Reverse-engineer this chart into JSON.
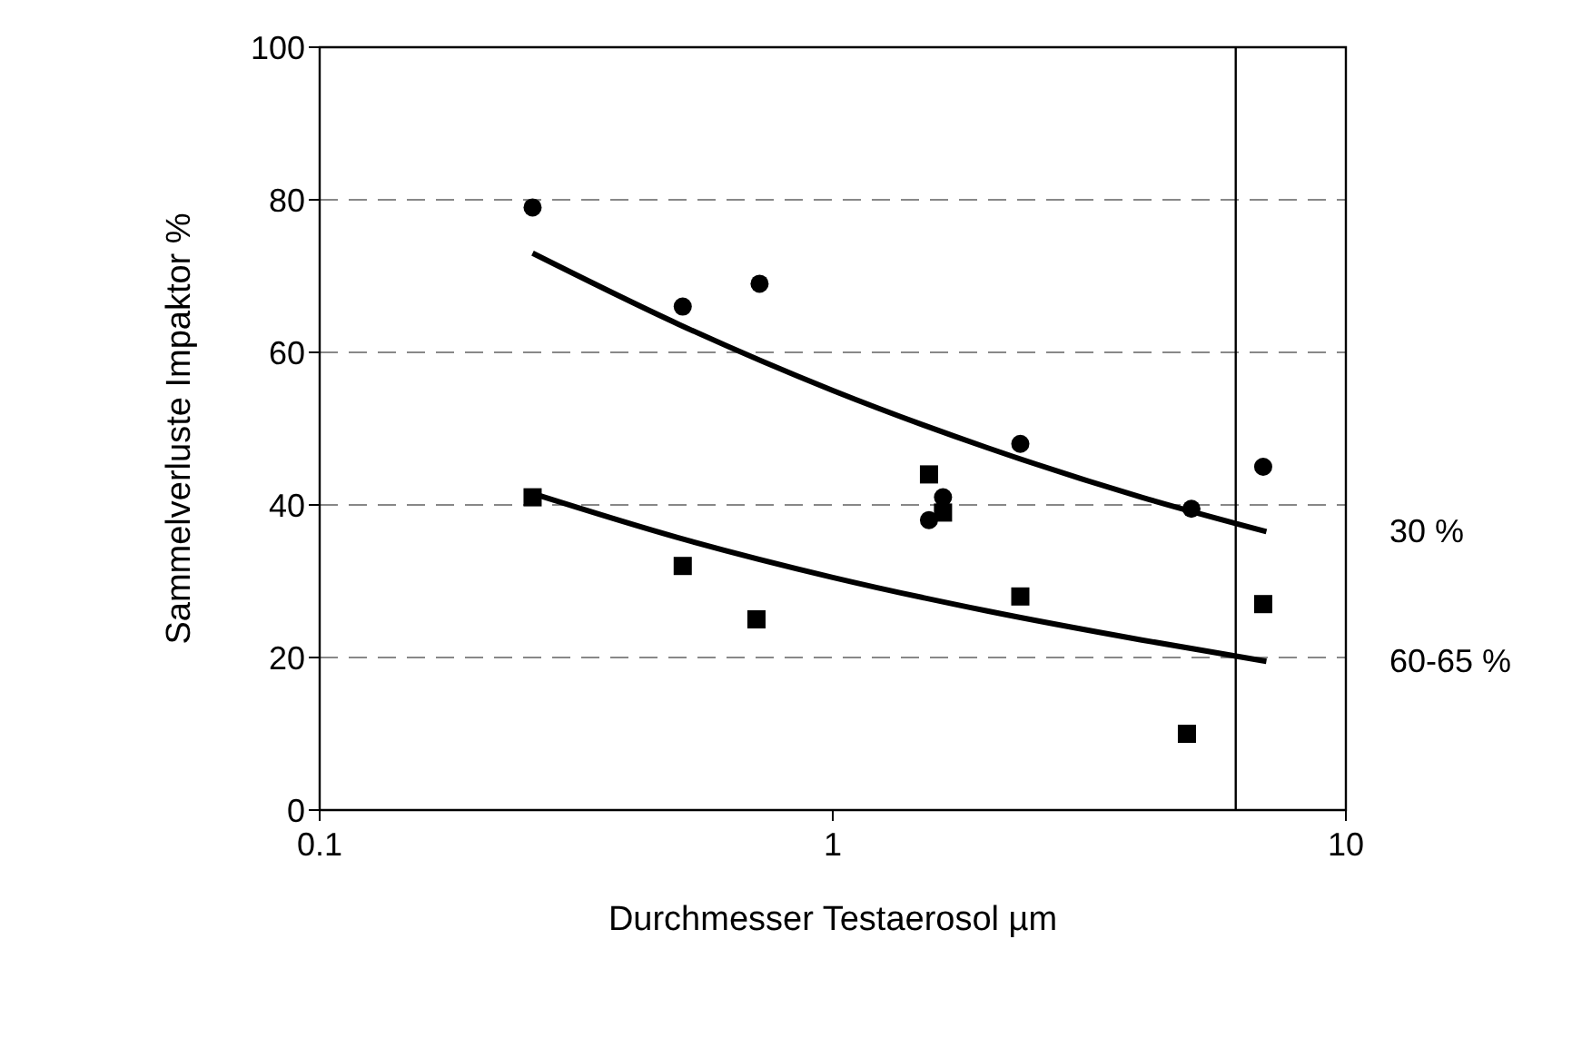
{
  "chart_data": {
    "type": "scatter",
    "xlabel": "Durchmesser Testaerosol µm",
    "ylabel": "Sammelverluste Impaktor %",
    "log": "x",
    "xlim": [
      0.1,
      10
    ],
    "xticks": [
      0.1,
      1,
      10
    ],
    "ylim": [
      0,
      100
    ],
    "yticks": [
      0,
      20,
      40,
      60,
      80,
      100
    ],
    "grid": "y",
    "legend": false,
    "series": [
      {
        "marker": "circle",
        "color": "#000000",
        "x": [
          0.26,
          0.51,
          0.72,
          1.54,
          1.64,
          2.32,
          5.0,
          6.9
        ],
        "values": [
          79,
          66,
          69,
          38,
          41,
          48,
          39.5,
          45
        ]
      },
      {
        "marker": "square",
        "color": "#000000",
        "x": [
          0.26,
          0.51,
          0.71,
          1.54,
          1.64,
          2.32,
          4.9,
          6.9
        ],
        "values": [
          41,
          32,
          25,
          44,
          39,
          28,
          10,
          27
        ]
      },
      {
        "type": "line",
        "name": "30 %",
        "marker": "none",
        "color": "#000000",
        "x": [
          0.26,
          0.5,
          1,
          2,
          4,
          7
        ],
        "values": [
          73,
          63.7,
          55,
          47.5,
          41,
          36.5
        ]
      },
      {
        "type": "line",
        "name": "60-65 %",
        "marker": "none",
        "color": "#000000",
        "x": [
          0.26,
          0.5,
          1,
          2,
          4,
          7
        ],
        "values": [
          41.5,
          35.7,
          30.5,
          26.1,
          22.3,
          19.5
        ]
      }
    ],
    "ref_lines": [
      {
        "axis": "x",
        "value": 6.1,
        "color": "#000000"
      }
    ]
  }
}
